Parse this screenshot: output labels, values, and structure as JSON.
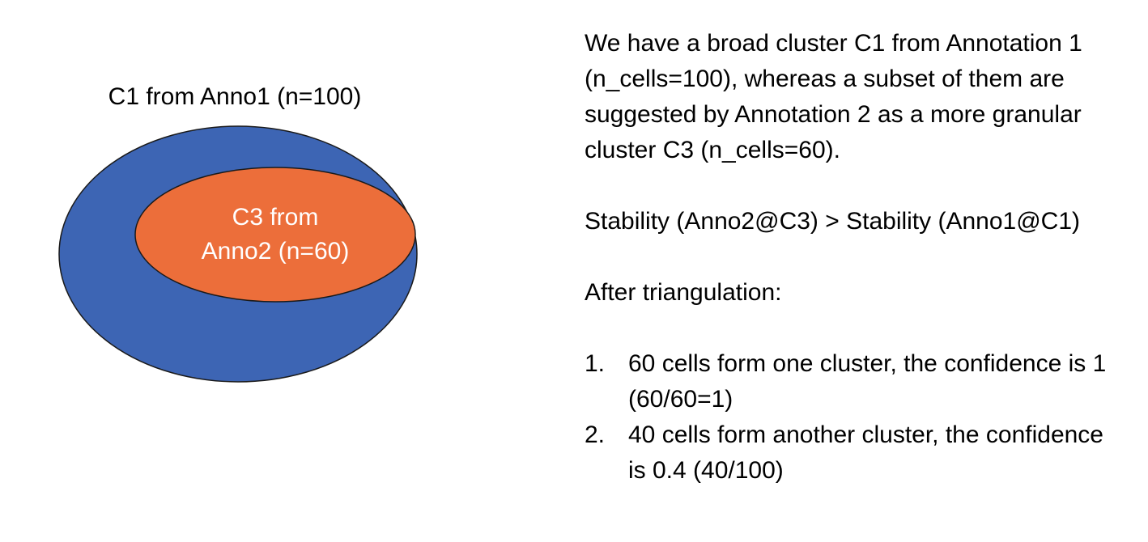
{
  "diagram": {
    "outer_label": "C1 from Anno1 (n=100)",
    "inner_label_line1": "C3 from",
    "inner_label_line2": "Anno2 (n=60)",
    "colors": {
      "outer_fill": "#3D65B4",
      "inner_fill": "#EC6E3A",
      "stroke": "#1A1A1A",
      "inner_text": "#FFFFFF"
    }
  },
  "text": {
    "intro": "We have a broad cluster C1 from Annotation 1 (n_cells=100), whereas a subset of them are suggested by Annotation 2 as a more granular cluster C3 (n_cells=60).",
    "stability": "Stability (Anno2@C3) > Stability (Anno1@C1)",
    "after_heading": "After triangulation:",
    "items": [
      {
        "num": "1.",
        "text": "60 cells form one cluster, the confidence is 1 (60/60=1)"
      },
      {
        "num": "2.",
        "text": "40 cells form another cluster, the confidence is 0.4 (40/100)"
      }
    ]
  }
}
